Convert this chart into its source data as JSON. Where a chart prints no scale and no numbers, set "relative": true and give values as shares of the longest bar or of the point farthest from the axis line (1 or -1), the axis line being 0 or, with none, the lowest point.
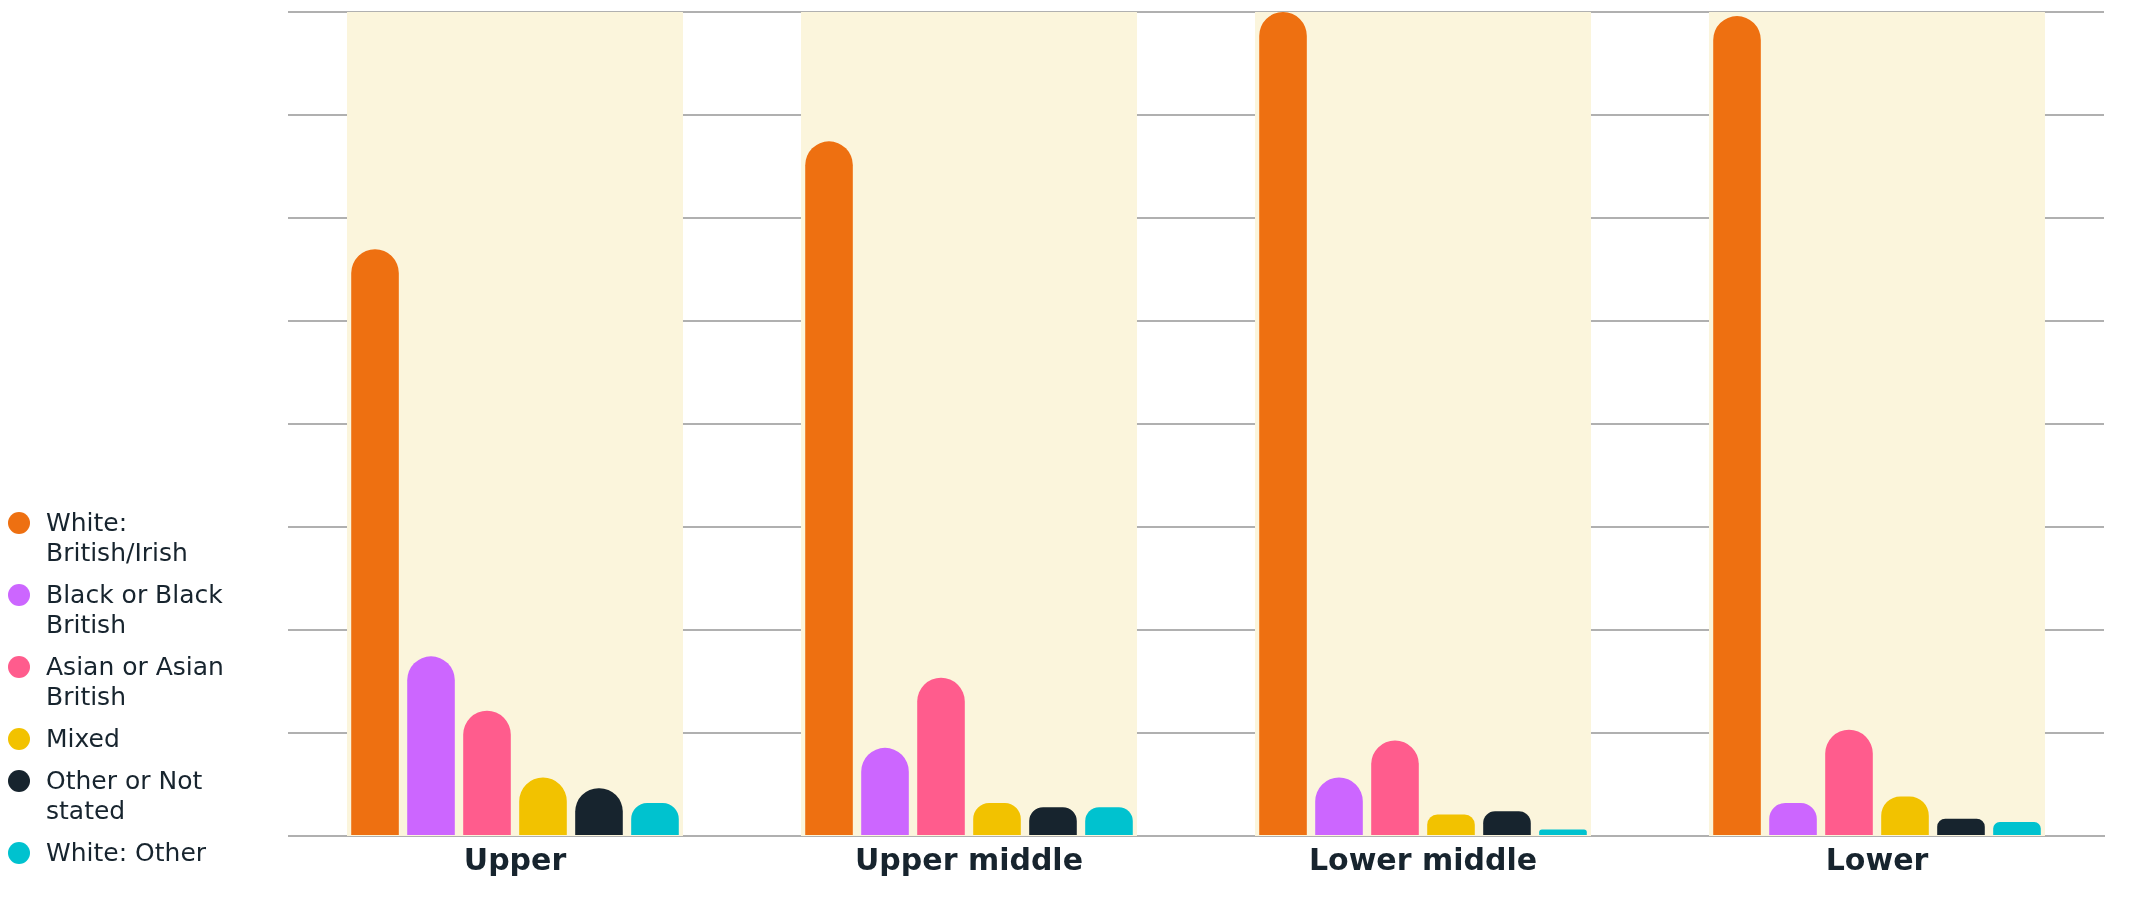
{
  "chart_data": {
    "type": "bar",
    "relative": true,
    "grid": "y",
    "legend": "left",
    "categories": [
      "Upper",
      "Upper middle",
      "Lower middle",
      "Lower"
    ],
    "series": [
      {
        "name": "White: British/Irish",
        "color": "#ee7011",
        "values": [
          0.712,
          0.843,
          1,
          0.995
        ]
      },
      {
        "name": "Black or Black British",
        "color": "#cc66ff",
        "values": [
          0.218,
          0.107,
          0.071,
          0.04
        ]
      },
      {
        "name": "Asian or Asian British",
        "color": "#ff5c8d",
        "values": [
          0.152,
          0.192,
          0.116,
          0.129
        ]
      },
      {
        "name": "Mixed",
        "color": "#f2c200",
        "values": [
          0.071,
          0.04,
          0.026,
          0.048
        ]
      },
      {
        "name": "Other or Not stated",
        "color": "#17242e",
        "values": [
          0.058,
          0.035,
          0.03,
          0.021
        ]
      },
      {
        "name": "White: Other",
        "color": "#00c2cf",
        "values": [
          0.04,
          0.035,
          0.008,
          0.017
        ]
      }
    ],
    "bands": [
      {
        "axis": "x",
        "from": "Upper",
        "to": "Upper",
        "color": "#fbf5dc"
      },
      {
        "axis": "x",
        "from": "Upper middle",
        "to": "Upper middle",
        "color": "#fbf5dc"
      },
      {
        "axis": "x",
        "from": "Lower middle",
        "to": "Lower middle",
        "color": "#fbf5dc"
      },
      {
        "axis": "x",
        "from": "Lower",
        "to": "Lower",
        "color": "#fbf5dc"
      }
    ]
  }
}
